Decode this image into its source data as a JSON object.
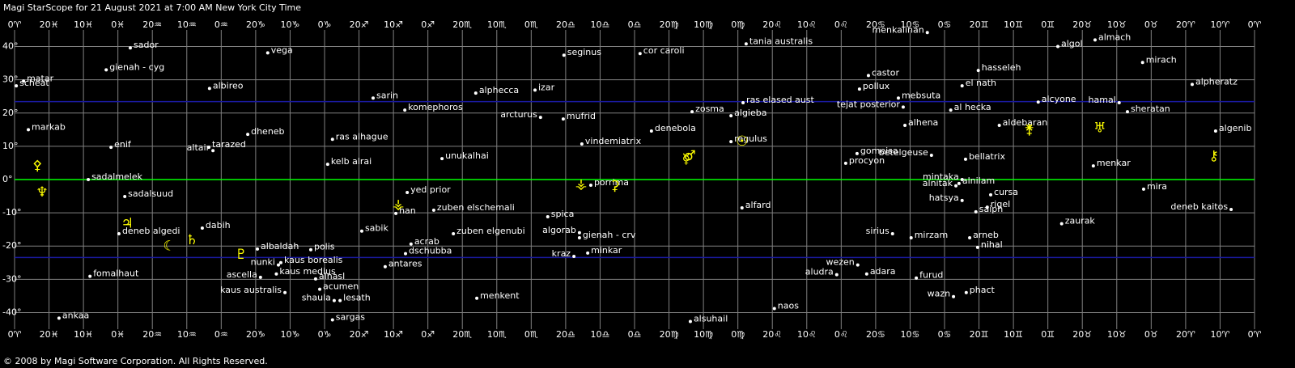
{
  "chart_data": {
    "type": "scatter",
    "title": "Magi StarScope for 21 August 2021 at 7:00 AM New York City Time",
    "footer": "© 2008 by Magi Software Corporation. All Rights Reserved.",
    "xlim": [
      360,
      0
    ],
    "ylim": [
      -45,
      45
    ],
    "grid": true,
    "background": "#000000",
    "grid_color": "#808080",
    "xticks": [
      {
        "value": 360,
        "label": "0♈"
      },
      {
        "value": 350,
        "label": "20♓"
      },
      {
        "value": 340,
        "label": "10♓"
      },
      {
        "value": 330,
        "label": "0♓"
      },
      {
        "value": 320,
        "label": "20♒"
      },
      {
        "value": 310,
        "label": "10♒"
      },
      {
        "value": 300,
        "label": "0♒"
      },
      {
        "value": 290,
        "label": "20♑"
      },
      {
        "value": 280,
        "label": "10♑"
      },
      {
        "value": 270,
        "label": "0♑"
      },
      {
        "value": 260,
        "label": "20♐"
      },
      {
        "value": 250,
        "label": "10♐"
      },
      {
        "value": 240,
        "label": "0♐"
      },
      {
        "value": 230,
        "label": "20♏"
      },
      {
        "value": 220,
        "label": "10♏"
      },
      {
        "value": 210,
        "label": "0♏"
      },
      {
        "value": 200,
        "label": "20♎"
      },
      {
        "value": 190,
        "label": "10♎"
      },
      {
        "value": 180,
        "label": "0♎"
      },
      {
        "value": 170,
        "label": "20♍"
      },
      {
        "value": 160,
        "label": "10♍"
      },
      {
        "value": 150,
        "label": "0♍"
      },
      {
        "value": 140,
        "label": "20♌"
      },
      {
        "value": 130,
        "label": "10♌"
      },
      {
        "value": 120,
        "label": "0♌"
      },
      {
        "value": 110,
        "label": "20♋"
      },
      {
        "value": 100,
        "label": "10♋"
      },
      {
        "value": 90,
        "label": "0♋"
      },
      {
        "value": 80,
        "label": "20♊"
      },
      {
        "value": 70,
        "label": "10♊"
      },
      {
        "value": 60,
        "label": "0♊"
      },
      {
        "value": 50,
        "label": "20♉"
      },
      {
        "value": 40,
        "label": "10♉"
      },
      {
        "value": 30,
        "label": "0♉"
      },
      {
        "value": 20,
        "label": "20♈"
      },
      {
        "value": 10,
        "label": "10♈"
      },
      {
        "value": 0,
        "label": "0♈"
      }
    ],
    "yticks": [
      {
        "value": 40,
        "label": "40°"
      },
      {
        "value": 30,
        "label": "30°"
      },
      {
        "value": 20,
        "label": "20°"
      },
      {
        "value": 10,
        "label": "10°"
      },
      {
        "value": 0,
        "label": "0°"
      },
      {
        "value": -10,
        "label": "-10°"
      },
      {
        "value": -20,
        "label": "-20°"
      },
      {
        "value": -30,
        "label": "-30°"
      },
      {
        "value": -40,
        "label": "-40°"
      }
    ],
    "reference_lines": [
      {
        "value": 23.44,
        "color": "#1a1aa0"
      },
      {
        "value": 0,
        "color": "#00ff00"
      },
      {
        "value": -23.44,
        "color": "#1a1aa0"
      }
    ],
    "stars": {
      "color": "#ffffff",
      "labels": [
        "matar",
        "scheat",
        "sador",
        "gienah - cyg",
        "markab",
        "enif",
        "sadalmelek",
        "sadalsuud",
        "deneb algedi",
        "fomalhaut",
        "ankaa",
        "albireo",
        "vega",
        "dheneb",
        "tarazed",
        "altair",
        "dabih",
        "albaldah",
        "polis",
        "nunki",
        "kaus borealis",
        "ascella",
        "kaus medius",
        "alnasl",
        "kaus australis",
        "acumen",
        "shaula",
        "lesath",
        "sargas",
        "ras alhague",
        "kelb alrai",
        "sabik",
        "antares",
        "sarin",
        "komephoros",
        "yed prior",
        "han",
        "acrab",
        "dschubba",
        "unukalhai",
        "zuben elschemali",
        "zuben elgenubi",
        "menkent",
        "alphecca",
        "izar",
        "arcturus",
        "mufrid",
        "seginus",
        "spica",
        "algorab",
        "gienah - crv",
        "kraz",
        "minkar",
        "vindemiatrix",
        "porrima",
        "cor caroli",
        "denebola",
        "zosma",
        "algieba",
        "regulus",
        "ras elased aust",
        "tania australis",
        "alfard",
        "alsuhail",
        "naos",
        "castor",
        "pollux",
        "tejat posterior",
        "mebsuta",
        "alhena",
        "gomeisa",
        "procyon",
        "betelgeuse",
        "bellatrix",
        "menkalinan",
        "el nath",
        "hasseleh",
        "al hecka",
        "aldebaran",
        "alcyone",
        "mintaka",
        "alnilam",
        "alnitak",
        "hatsya",
        "cursa",
        "rigel",
        "saiph",
        "sirius",
        "mirzam",
        "arneb",
        "nihal",
        "wezen",
        "adara",
        "aludra",
        "furud",
        "wazn",
        "phact",
        "zaurak",
        "menkar",
        "mira",
        "deneb kaitos",
        "algol",
        "almach",
        "mirach",
        "hamal",
        "sheratan",
        "alpheratz",
        "algenib"
      ],
      "x": [
        357.4,
        359.5,
        326.4,
        333.4,
        356.0,
        332.0,
        338.6,
        328.0,
        329.7,
        338.1,
        347.1,
        303.4,
        286.5,
        292.3,
        303.6,
        302.4,
        305.5,
        289.5,
        274.0,
        283.4,
        282.7,
        288.6,
        284.0,
        272.6,
        281.5,
        271.4,
        267.2,
        265.5,
        267.7,
        267.7,
        269.1,
        259.2,
        252.4,
        255.9,
        246.7,
        246.0,
        249.3,
        244.9,
        246.5,
        235.9,
        238.3,
        232.6,
        225.8,
        226.1,
        208.9,
        207.3,
        200.7,
        200.5,
        205.2,
        196.0,
        196.0,
        197.6,
        193.6,
        195.3,
        192.7,
        178.4,
        175.1,
        163.3,
        152.0,
        152.0,
        148.5,
        147.6,
        148.8,
        163.8,
        139.4,
        112.1,
        114.7,
        102.0,
        103.4,
        101.5,
        115.4,
        118.7,
        93.8,
        83.9,
        95.0,
        84.9,
        80.2,
        88.2,
        74.1,
        62.8,
        84.9,
        85.8,
        86.7,
        84.9,
        76.6,
        77.6,
        80.9,
        105.1,
        99.7,
        82.7,
        80.4,
        115.2,
        112.6,
        121.3,
        98.2,
        87.4,
        83.7,
        56.0,
        46.8,
        32.2,
        6.8,
        57.1,
        46.3,
        32.5,
        39.3,
        36.9,
        18.1,
        11.3
      ],
      "y": [
        29.6,
        28.2,
        39.6,
        33.0,
        15.0,
        9.7,
        0,
        -5.1,
        -16.3,
        -29.1,
        -41.7,
        27.4,
        38.1,
        13.6,
        9.7,
        8.7,
        -14.6,
        -20.9,
        -21.1,
        -25.7,
        -25.0,
        -29.4,
        -28.4,
        -29.9,
        -34.0,
        -33.0,
        -36.4,
        -36.4,
        -42.2,
        12.1,
        4.6,
        -15.5,
        -26.2,
        24.5,
        20.9,
        -3.9,
        -10.2,
        -19.4,
        -22.3,
        6.3,
        -9.2,
        -16.3,
        -35.7,
        26.0,
        26.9,
        18.7,
        18.2,
        37.4,
        -11.2,
        -16.0,
        -17.5,
        -23.1,
        -22.1,
        10.7,
        -1.7,
        37.9,
        14.6,
        20.4,
        19.2,
        11.4,
        23.1,
        40.8,
        -8.5,
        -42.7,
        -38.8,
        31.3,
        27.2,
        21.8,
        24.5,
        16.3,
        7.8,
        4.9,
        7.3,
        6.1,
        44.2,
        28.2,
        32.8,
        20.9,
        16.3,
        23.3,
        0.0,
        -1.2,
        -1.9,
        -6.3,
        -4.6,
        -8.3,
        -9.7,
        -16.3,
        -17.5,
        -17.5,
        -20.4,
        -25.7,
        -28.4,
        -28.6,
        -29.6,
        -35.2,
        -34.0,
        -13.3,
        4.1,
        -2.9,
        -9.0,
        40.0,
        42.0,
        35.2,
        23.1,
        20.4,
        28.6,
        14.6
      ]
    },
    "bodies": {
      "color": "#ffff00",
      "glyphs": [
        "⚴",
        "♆",
        "♃",
        "☾",
        "♄",
        "♇",
        "⚶",
        "⚶",
        "⚳",
        "☿",
        "♂",
        "☉",
        "⚵",
        "♅",
        "⚷"
      ],
      "x": [
        353.4,
        352.0,
        327.3,
        315.1,
        308.5,
        294.2,
        248.6,
        195.5,
        185.7,
        165.0,
        164.0,
        148.8,
        65.4,
        44.9,
        11.8
      ],
      "y": [
        4.1,
        -3.9,
        -13.3,
        -20.1,
        -18.2,
        -22.6,
        -7.5,
        -1.5,
        -2.0,
        6.1,
        7.0,
        11.4,
        15.0,
        15.5,
        7.0
      ]
    }
  }
}
